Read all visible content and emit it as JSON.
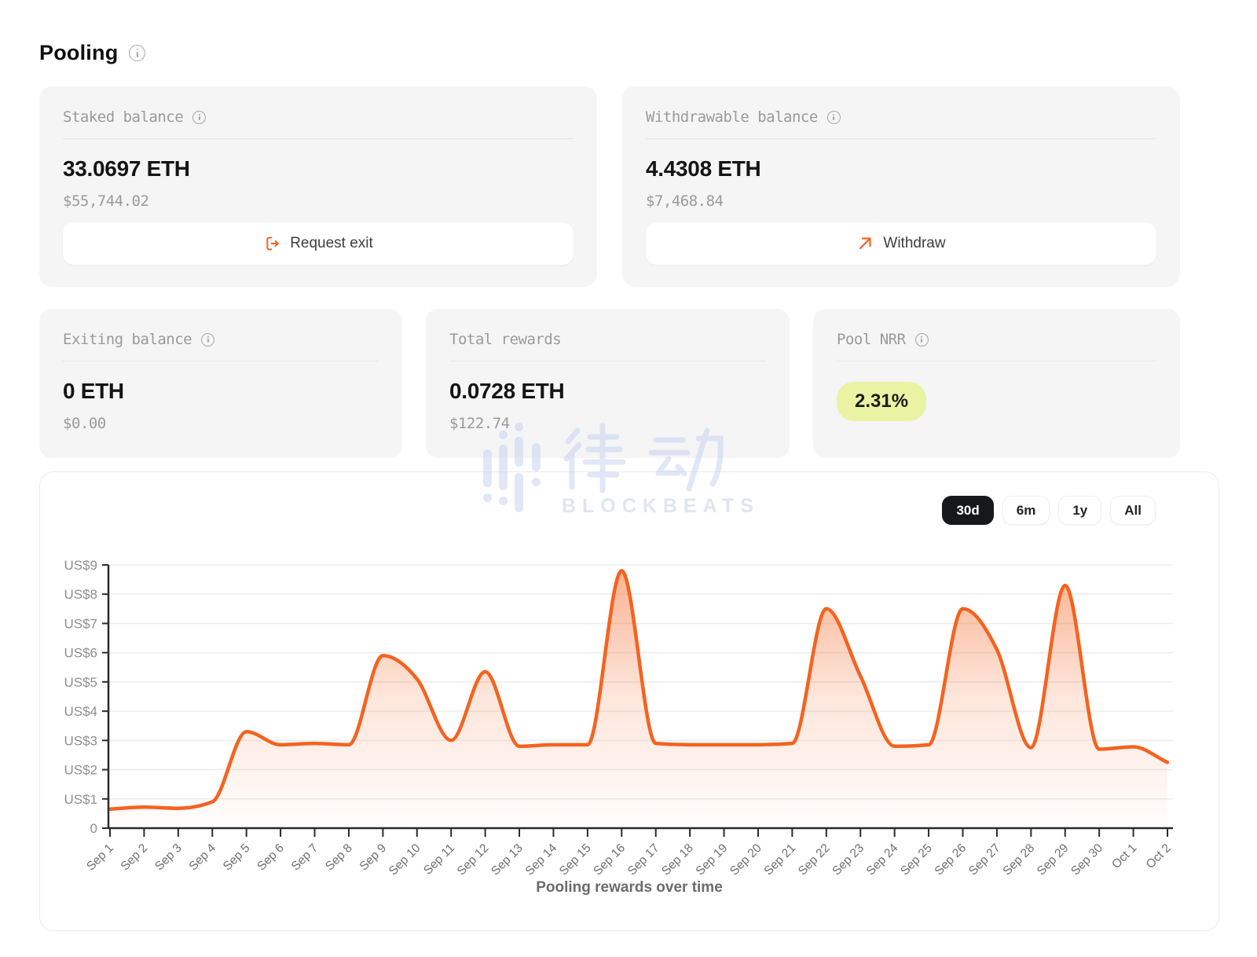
{
  "page": {
    "title": "Pooling"
  },
  "cards": {
    "staked": {
      "label": "Staked balance",
      "value": "33.0697 ETH",
      "fiat": "$55,744.02",
      "button": "Request exit"
    },
    "withdrawable": {
      "label": "Withdrawable balance",
      "value": "4.4308 ETH",
      "fiat": "$7,468.84",
      "button": "Withdraw"
    },
    "exiting": {
      "label": "Exiting balance",
      "value": "0 ETH",
      "fiat": "$0.00"
    },
    "total_rewards": {
      "label": "Total rewards",
      "value": "0.0728 ETH",
      "fiat": "$122.74"
    },
    "pool_nrr": {
      "label": "Pool NRR",
      "value": "2.31%"
    }
  },
  "colors": {
    "accent_orange": "#f4631f",
    "badge_bg": "#e9f3a3",
    "card_bg": "#f5f5f6",
    "axis": "#2b2b2b",
    "grid": "#ededed",
    "y_label": "#8f8f8f",
    "x_label": "#6f6f6f",
    "range_active_bg": "#17181a"
  },
  "watermark": {
    "cjk": "律动",
    "latin": "BLOCKBEATS"
  },
  "chart_data": {
    "type": "area",
    "title": "Pooling rewards over time",
    "x_labels": [
      "Sep 1",
      "Sep 2",
      "Sep 3",
      "Sep 4",
      "Sep 5",
      "Sep 6",
      "Sep 7",
      "Sep 8",
      "Sep 9",
      "Sep 10",
      "Sep 11",
      "Sep 12",
      "Sep 13",
      "Sep 14",
      "Sep 15",
      "Sep 16",
      "Sep 17",
      "Sep 18",
      "Sep 19",
      "Sep 20",
      "Sep 21",
      "Sep 22",
      "Sep 23",
      "Sep 24",
      "Sep 25",
      "Sep 26",
      "Sep 27",
      "Sep 28",
      "Sep 29",
      "Sep 30",
      "Oct 1",
      "Oct 2"
    ],
    "values": [
      0.65,
      0.72,
      0.68,
      0.9,
      3.3,
      2.85,
      2.9,
      2.85,
      5.9,
      5.1,
      3.0,
      5.35,
      2.8,
      2.85,
      2.85,
      8.8,
      2.9,
      2.85,
      2.85,
      2.85,
      2.9,
      7.5,
      5.2,
      2.8,
      2.85,
      7.5,
      6.1,
      2.75,
      8.3,
      2.7,
      2.78,
      2.25
    ],
    "y_prefix": "US$",
    "ylim": [
      0,
      9
    ],
    "y_ticks": [
      0,
      1,
      2,
      3,
      4,
      5,
      6,
      7,
      8,
      9
    ],
    "grid": "horizontal",
    "legend": "none",
    "line_color": "#f4631f",
    "ranges": [
      {
        "label": "30d",
        "active": true
      },
      {
        "label": "6m",
        "active": false
      },
      {
        "label": "1y",
        "active": false
      },
      {
        "label": "All",
        "active": false
      }
    ]
  }
}
